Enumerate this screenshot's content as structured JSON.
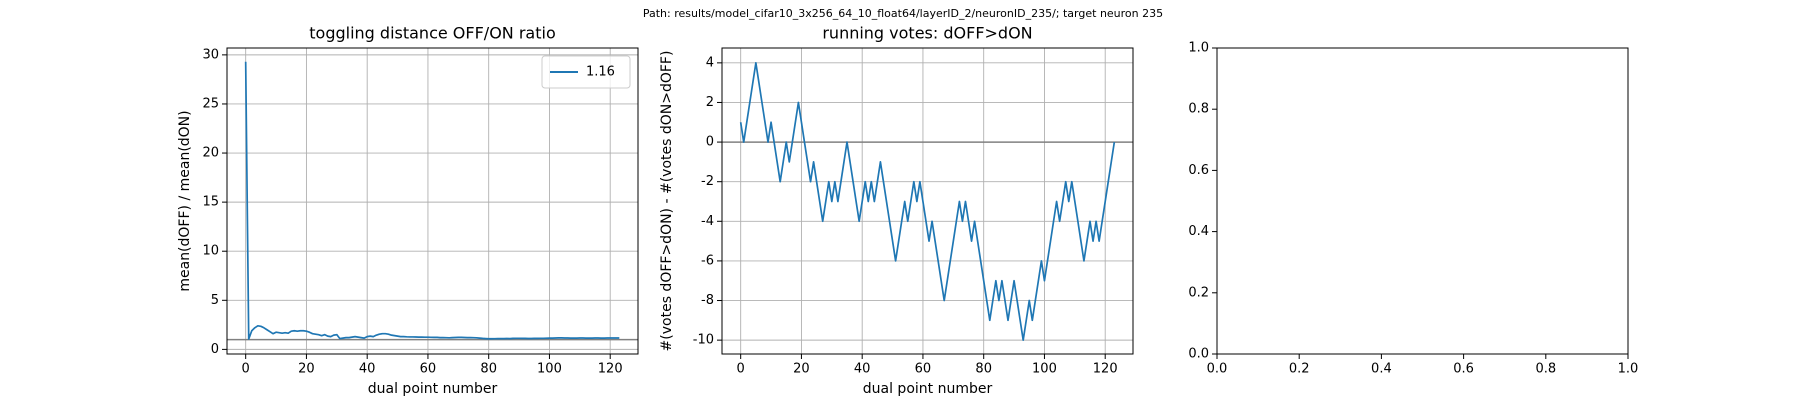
{
  "figure_title": "Path: results/model_cifar10_3x256_64_10_float64/layerID_2/neuronID_235/; target neuron 235",
  "chart_data": [
    {
      "type": "line",
      "title": "toggling distance OFF/ON ratio",
      "xlabel": "dual point number",
      "ylabel": "mean(dOFF) / mean(dON)",
      "x": [
        0,
        1,
        2,
        3,
        4,
        5,
        6,
        7,
        8,
        9,
        10,
        11,
        12,
        13,
        14,
        15,
        16,
        17,
        18,
        19,
        20,
        21,
        22,
        23,
        24,
        25,
        26,
        27,
        28,
        29,
        30,
        31,
        32,
        33,
        34,
        35,
        36,
        37,
        38,
        39,
        40,
        41,
        42,
        43,
        44,
        45,
        46,
        47,
        48,
        49,
        50,
        51,
        52,
        53,
        54,
        55,
        56,
        57,
        58,
        59,
        60,
        61,
        62,
        63,
        64,
        65,
        66,
        67,
        68,
        69,
        70,
        71,
        72,
        73,
        74,
        75,
        76,
        77,
        78,
        79,
        80,
        81,
        82,
        83,
        84,
        85,
        86,
        87,
        88,
        89,
        90,
        91,
        92,
        93,
        94,
        95,
        96,
        97,
        98,
        99,
        100,
        101,
        102,
        103,
        104,
        105,
        106,
        107,
        108,
        109,
        110,
        111,
        112,
        113,
        114,
        115,
        116,
        117,
        118,
        119,
        120,
        121,
        122,
        123
      ],
      "series": [
        {
          "name": "1.16",
          "color": "#1f77b4",
          "values": [
            29.3,
            1.05,
            1.9,
            2.2,
            2.4,
            2.35,
            2.2,
            2.0,
            1.8,
            1.6,
            1.75,
            1.7,
            1.65,
            1.7,
            1.65,
            1.85,
            1.9,
            1.85,
            1.9,
            1.9,
            1.85,
            1.75,
            1.6,
            1.55,
            1.5,
            1.4,
            1.5,
            1.35,
            1.3,
            1.45,
            1.5,
            1.1,
            1.15,
            1.2,
            1.2,
            1.25,
            1.3,
            1.25,
            1.2,
            1.15,
            1.3,
            1.35,
            1.3,
            1.45,
            1.55,
            1.6,
            1.6,
            1.55,
            1.45,
            1.4,
            1.35,
            1.3,
            1.3,
            1.28,
            1.27,
            1.27,
            1.26,
            1.25,
            1.25,
            1.24,
            1.24,
            1.23,
            1.22,
            1.22,
            1.2,
            1.2,
            1.19,
            1.18,
            1.2,
            1.21,
            1.22,
            1.22,
            1.21,
            1.2,
            1.2,
            1.19,
            1.18,
            1.15,
            1.12,
            1.1,
            1.08,
            1.08,
            1.09,
            1.1,
            1.1,
            1.1,
            1.11,
            1.1,
            1.12,
            1.13,
            1.13,
            1.12,
            1.12,
            1.11,
            1.11,
            1.12,
            1.12,
            1.13,
            1.13,
            1.14,
            1.15,
            1.15,
            1.16,
            1.17,
            1.17,
            1.16,
            1.16,
            1.15,
            1.15,
            1.15,
            1.16,
            1.16,
            1.15,
            1.15,
            1.15,
            1.16,
            1.16,
            1.15,
            1.15,
            1.16,
            1.16,
            1.16,
            1.16,
            1.16
          ]
        }
      ],
      "hline": 1,
      "hline_color": "#808080",
      "xlim": [
        -6.15,
        129.15
      ],
      "xticks": [
        0,
        20,
        40,
        60,
        80,
        100,
        120
      ],
      "ylim": [
        -0.47,
        30.7
      ],
      "yticks": [
        0,
        5,
        10,
        15,
        20,
        25,
        30
      ],
      "grid": true,
      "legend": "upper right"
    },
    {
      "type": "line",
      "title": "running votes: dOFF>dON",
      "xlabel": "dual point number",
      "ylabel": "#(votes dOFF>dON) - #(votes dON>dOFF)",
      "x": [
        0,
        1,
        2,
        3,
        4,
        5,
        6,
        7,
        8,
        9,
        10,
        11,
        12,
        13,
        14,
        15,
        16,
        17,
        18,
        19,
        20,
        21,
        22,
        23,
        24,
        25,
        26,
        27,
        28,
        29,
        30,
        31,
        32,
        33,
        34,
        35,
        36,
        37,
        38,
        39,
        40,
        41,
        42,
        43,
        44,
        45,
        46,
        47,
        48,
        49,
        50,
        51,
        52,
        53,
        54,
        55,
        56,
        57,
        58,
        59,
        60,
        61,
        62,
        63,
        64,
        65,
        66,
        67,
        68,
        69,
        70,
        71,
        72,
        73,
        74,
        75,
        76,
        77,
        78,
        79,
        80,
        81,
        82,
        83,
        84,
        85,
        86,
        87,
        88,
        89,
        90,
        91,
        92,
        93,
        94,
        95,
        96,
        97,
        98,
        99,
        100,
        101,
        102,
        103,
        104,
        105,
        106,
        107,
        108,
        109,
        110,
        111,
        112,
        113,
        114,
        115,
        116,
        117,
        118,
        119,
        120,
        121,
        122,
        123
      ],
      "series": [
        {
          "name": "running votes",
          "color": "#1f77b4",
          "values": [
            1,
            0,
            1,
            2,
            3,
            4,
            3,
            2,
            1,
            0,
            1,
            0,
            -1,
            -2,
            -1,
            0,
            -1,
            0,
            1,
            2,
            1,
            0,
            -1,
            -2,
            -1,
            -2,
            -3,
            -4,
            -3,
            -2,
            -3,
            -2,
            -3,
            -2,
            -1,
            0,
            -1,
            -2,
            -3,
            -4,
            -3,
            -2,
            -3,
            -2,
            -3,
            -2,
            -1,
            -2,
            -3,
            -4,
            -5,
            -6,
            -5,
            -4,
            -3,
            -4,
            -3,
            -2,
            -3,
            -2,
            -3,
            -4,
            -5,
            -4,
            -5,
            -6,
            -7,
            -8,
            -7,
            -6,
            -5,
            -4,
            -3,
            -4,
            -3,
            -4,
            -5,
            -4,
            -5,
            -6,
            -7,
            -8,
            -9,
            -8,
            -7,
            -8,
            -7,
            -8,
            -9,
            -8,
            -7,
            -8,
            -9,
            -10,
            -9,
            -8,
            -9,
            -8,
            -7,
            -6,
            -7,
            -6,
            -5,
            -4,
            -3,
            -4,
            -3,
            -2,
            -3,
            -2,
            -3,
            -4,
            -5,
            -6,
            -5,
            -4,
            -5,
            -4,
            -5,
            -4,
            -3,
            -2,
            -1,
            0
          ]
        }
      ],
      "hline": 0,
      "hline_color": "#808080",
      "xlim": [
        -6.15,
        129.15
      ],
      "xticks": [
        0,
        20,
        40,
        60,
        80,
        100,
        120
      ],
      "ylim": [
        -10.7,
        4.75
      ],
      "yticks": [
        -10,
        -8,
        -6,
        -4,
        -2,
        0,
        2,
        4
      ],
      "grid": true
    },
    {
      "type": "empty",
      "xlim": [
        0,
        1
      ],
      "xticks": [
        {
          "value": 0,
          "label": "0.0"
        },
        {
          "value": 0.2,
          "label": "0.2"
        },
        {
          "value": 0.4,
          "label": "0.4"
        },
        {
          "value": 0.6,
          "label": "0.6"
        },
        {
          "value": 0.8,
          "label": "0.8"
        },
        {
          "value": 1,
          "label": "1.0"
        }
      ],
      "ylim": [
        0,
        1
      ],
      "yticks": [
        {
          "value": 0,
          "label": "0.0"
        },
        {
          "value": 0.2,
          "label": "0.2"
        },
        {
          "value": 0.4,
          "label": "0.4"
        },
        {
          "value": 0.6,
          "label": "0.6"
        },
        {
          "value": 0.8,
          "label": "0.8"
        },
        {
          "value": 1,
          "label": "1.0"
        }
      ],
      "grid": false
    }
  ]
}
